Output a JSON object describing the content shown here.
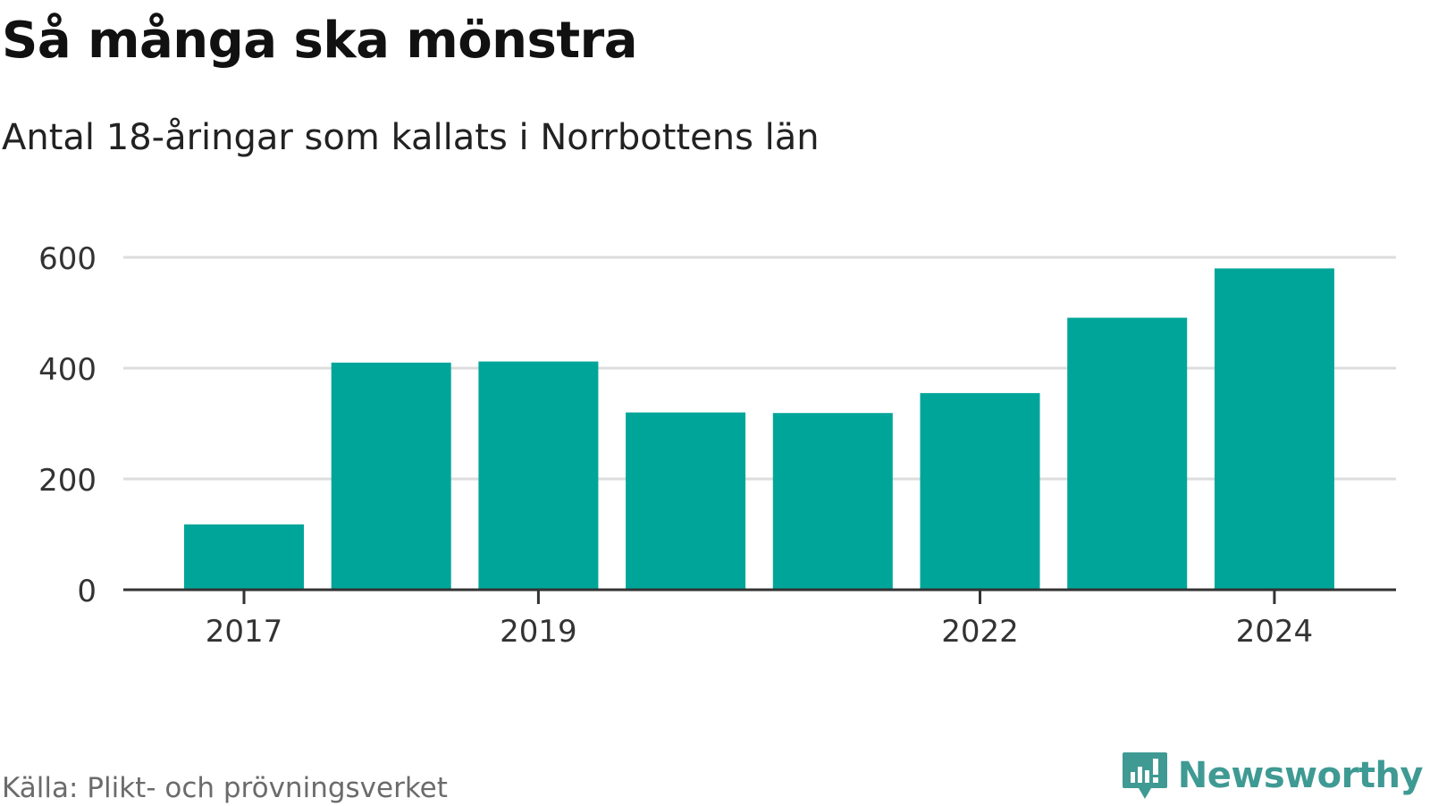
{
  "header": {
    "title": "Så många ska mönstra",
    "subtitle": "Antal 18-åringar som kallats i Norrbottens län"
  },
  "chart_data": {
    "type": "bar",
    "categories": [
      "2017",
      "2018",
      "2019",
      "2020",
      "2021",
      "2022",
      "2023",
      "2024"
    ],
    "values": [
      118,
      410,
      412,
      320,
      319,
      355,
      491,
      580
    ],
    "x_tick_labels": [
      "2017",
      "2019",
      "2022",
      "2024"
    ],
    "y_ticks": [
      0,
      200,
      400,
      600
    ],
    "ylim": [
      0,
      600
    ],
    "xlabel": "",
    "ylabel": "",
    "grid": true,
    "bar_color": "#00a59a",
    "gridline_color": "#dddddd",
    "axis_color": "#333333"
  },
  "footer": {
    "source": "Källa: Plikt- och prövningsverket",
    "brand": "Newsworthy",
    "brand_color": "#3f9a93",
    "brand_icon": "bar-chart-exclamation-icon"
  }
}
